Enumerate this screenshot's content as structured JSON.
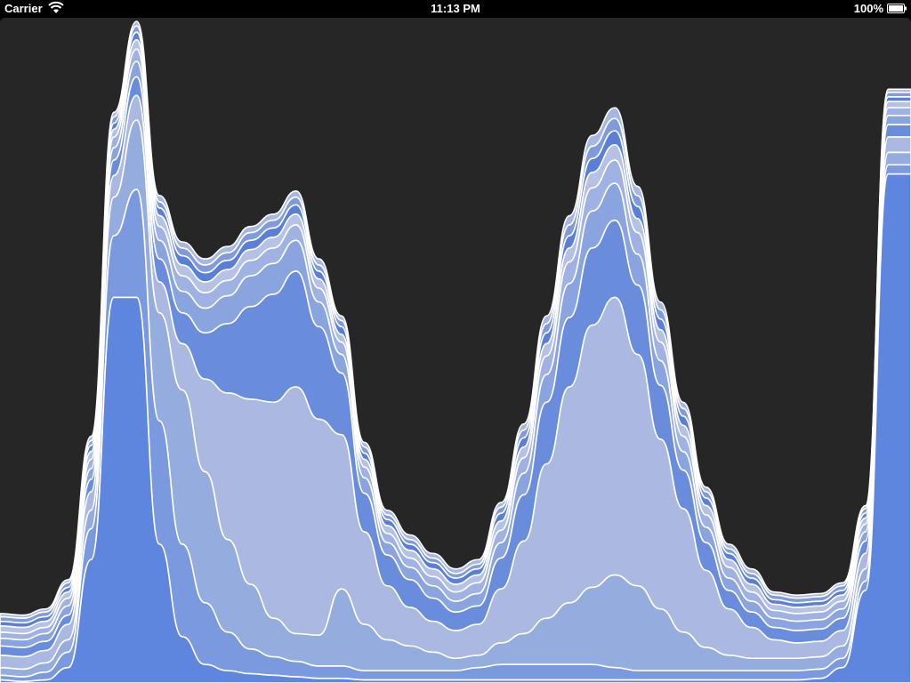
{
  "status_bar": {
    "carrier": "Carrier",
    "time": "11:13 PM",
    "battery": "100%",
    "icons": [
      "wifi-icon",
      "battery-icon"
    ]
  },
  "colors": {
    "background": "#262626",
    "stroke": "#ffffff",
    "layer_fills": [
      "#4472e0",
      "#5f86de",
      "#7b99de",
      "#95acdf",
      "#aab8e2",
      "#6a8cdc",
      "#8aa4e0",
      "#9fb2e3",
      "#b5c2e6",
      "#5a7fd9",
      "#7f9bdd",
      "#a7b7e4"
    ]
  },
  "chart_data": {
    "type": "area",
    "variant": "streamgraph",
    "baseline": "bottom",
    "title": "",
    "xlabel": "",
    "ylabel": "",
    "grid": false,
    "legend": "none",
    "x": [
      0,
      1,
      2,
      3,
      4,
      5,
      6,
      7,
      8,
      9,
      10,
      11,
      12,
      13,
      14,
      15,
      16,
      17,
      18,
      19,
      20,
      21,
      22,
      23,
      24,
      25,
      26,
      27,
      28,
      29,
      30,
      31,
      32,
      33,
      34,
      35,
      36,
      37,
      38,
      39,
      40
    ],
    "series": [
      {
        "values": [
          0,
          0,
          0,
          0,
          0,
          0,
          0,
          0,
          0,
          0,
          0,
          0,
          0,
          0,
          0,
          0,
          0,
          0,
          0,
          0,
          0,
          0,
          0,
          0,
          0,
          0,
          0,
          0,
          0,
          0,
          0,
          0,
          0,
          0,
          0,
          0,
          0,
          0,
          0,
          0,
          0
        ]
      },
      {
        "values": [
          2,
          1,
          2,
          10,
          80,
          250,
          250,
          90,
          30,
          12,
          8,
          6,
          5,
          4,
          3,
          3,
          2,
          2,
          2,
          2,
          2,
          2,
          2,
          2,
          2,
          2,
          2,
          2,
          2,
          2,
          2,
          2,
          2,
          2,
          2,
          2,
          3,
          10,
          60,
          330,
          330
        ]
      },
      {
        "values": [
          3,
          3,
          5,
          10,
          20,
          40,
          70,
          80,
          60,
          40,
          25,
          16,
          12,
          10,
          8,
          8,
          6,
          6,
          6,
          6,
          6,
          8,
          10,
          10,
          10,
          10,
          10,
          8,
          6,
          6,
          6,
          6,
          6,
          6,
          6,
          6,
          6,
          6,
          6,
          6,
          6
        ]
      },
      {
        "values": [
          5,
          5,
          6,
          8,
          12,
          25,
          45,
          70,
          100,
          85,
          60,
          42,
          25,
          18,
          20,
          50,
          30,
          20,
          16,
          12,
          8,
          8,
          14,
          20,
          30,
          40,
          50,
          60,
          55,
          40,
          25,
          15,
          10,
          8,
          8,
          8,
          8,
          8,
          8,
          8,
          8
        ]
      },
      {
        "values": [
          8,
          8,
          8,
          10,
          12,
          14,
          16,
          20,
          30,
          60,
          95,
          120,
          140,
          160,
          140,
          100,
          60,
          35,
          25,
          20,
          18,
          20,
          35,
          60,
          100,
          140,
          170,
          180,
          150,
          110,
          80,
          50,
          30,
          20,
          12,
          10,
          10,
          10,
          10,
          10,
          10
        ]
      },
      {
        "values": [
          6,
          6,
          6,
          6,
          8,
          10,
          12,
          15,
          20,
          30,
          45,
          60,
          70,
          75,
          60,
          40,
          25,
          20,
          18,
          15,
          12,
          12,
          20,
          30,
          40,
          45,
          50,
          50,
          45,
          35,
          25,
          18,
          12,
          10,
          8,
          8,
          8,
          8,
          8,
          8,
          8
        ]
      },
      {
        "values": [
          5,
          5,
          5,
          6,
          7,
          8,
          10,
          12,
          14,
          16,
          18,
          20,
          20,
          20,
          16,
          12,
          10,
          8,
          8,
          8,
          7,
          8,
          10,
          14,
          18,
          22,
          24,
          24,
          20,
          16,
          12,
          10,
          8,
          7,
          6,
          6,
          6,
          6,
          6,
          6,
          6
        ]
      },
      {
        "values": [
          4,
          4,
          4,
          5,
          6,
          7,
          8,
          9,
          10,
          10,
          10,
          10,
          10,
          10,
          9,
          8,
          7,
          6,
          6,
          6,
          6,
          7,
          8,
          10,
          12,
          14,
          15,
          15,
          14,
          12,
          10,
          8,
          7,
          6,
          5,
          5,
          5,
          5,
          5,
          5,
          5
        ]
      },
      {
        "values": [
          4,
          4,
          4,
          4,
          5,
          5,
          6,
          7,
          7,
          7,
          7,
          7,
          7,
          7,
          6,
          5,
          5,
          5,
          5,
          5,
          5,
          5,
          6,
          7,
          8,
          9,
          10,
          10,
          9,
          8,
          7,
          6,
          5,
          5,
          4,
          4,
          4,
          4,
          4,
          4,
          4
        ]
      },
      {
        "values": [
          3,
          3,
          3,
          3,
          4,
          4,
          5,
          5,
          6,
          6,
          6,
          6,
          6,
          6,
          5,
          5,
          4,
          4,
          4,
          4,
          4,
          4,
          5,
          6,
          7,
          8,
          9,
          9,
          8,
          7,
          6,
          5,
          4,
          4,
          3,
          3,
          3,
          3,
          3,
          3,
          3
        ]
      },
      {
        "values": [
          3,
          3,
          3,
          3,
          3,
          4,
          4,
          4,
          5,
          5,
          5,
          5,
          5,
          5,
          4,
          4,
          4,
          3,
          3,
          3,
          3,
          3,
          4,
          5,
          6,
          7,
          8,
          8,
          7,
          6,
          5,
          4,
          3,
          3,
          3,
          3,
          3,
          3,
          3,
          3,
          3
        ]
      },
      {
        "values": [
          2,
          2,
          2,
          2,
          3,
          3,
          3,
          4,
          4,
          4,
          4,
          4,
          4,
          4,
          4,
          3,
          3,
          3,
          3,
          3,
          3,
          3,
          3,
          4,
          5,
          6,
          7,
          7,
          6,
          5,
          4,
          3,
          3,
          3,
          2,
          2,
          2,
          2,
          2,
          2,
          2
        ]
      }
    ]
  }
}
